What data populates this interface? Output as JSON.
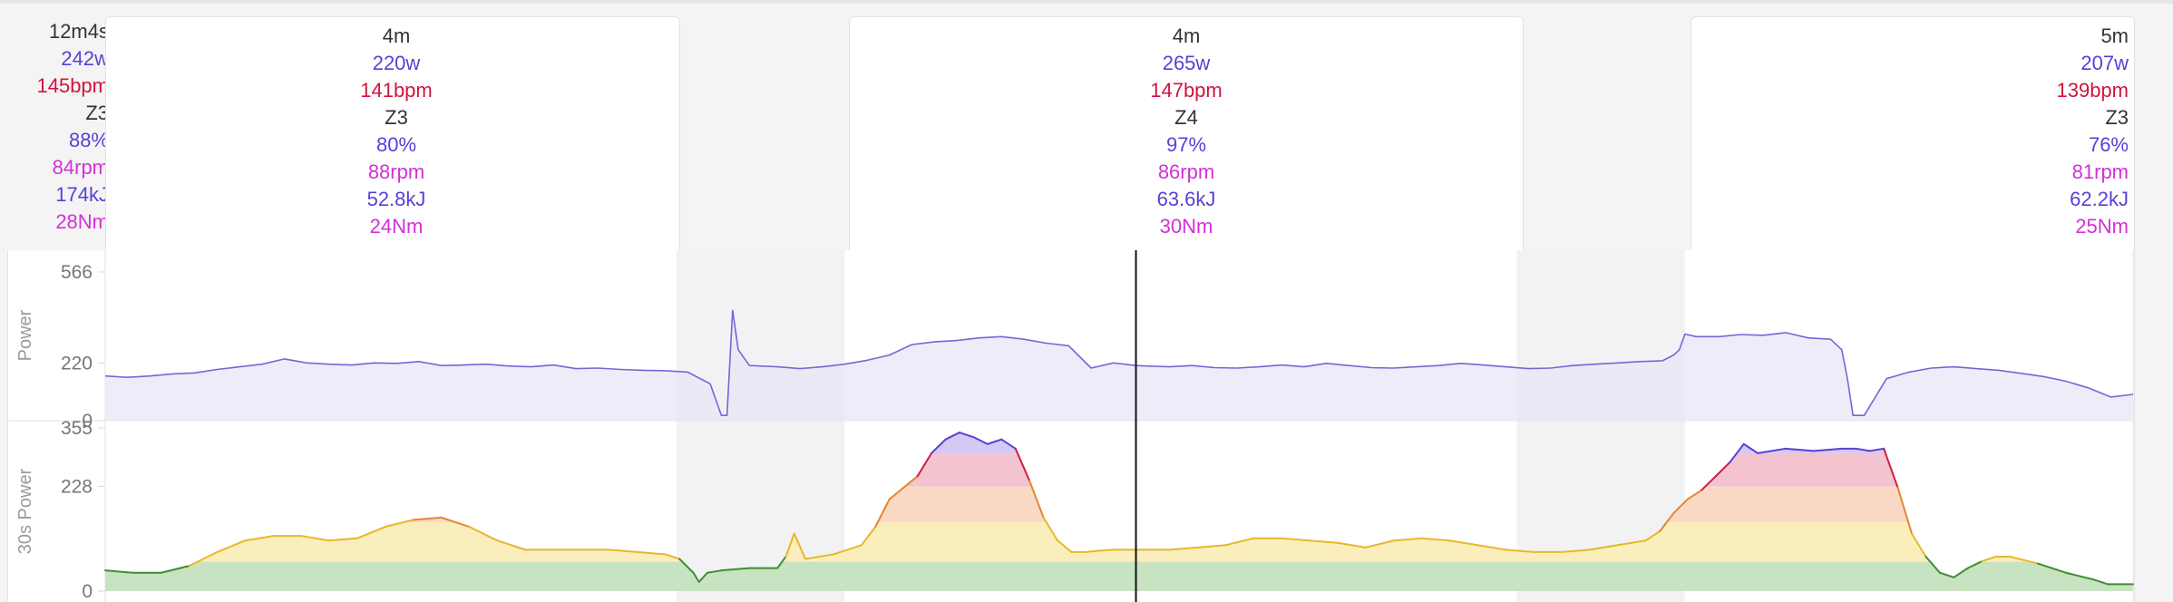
{
  "summary": {
    "duration": "12m4s",
    "power": "242w",
    "hr": "145bpm",
    "zone": "Z3",
    "pct": "88%",
    "cadence": "84rpm",
    "energy": "174kJ",
    "torque": "28Nm"
  },
  "intervals": [
    {
      "duration": "4m",
      "power": "220w",
      "hr": "141bpm",
      "zone": "Z3",
      "pct": "80%",
      "cadence": "88rpm",
      "energy": "52.8kJ",
      "torque": "24Nm"
    },
    {
      "duration": "4m",
      "power": "265w",
      "hr": "147bpm",
      "zone": "Z4",
      "pct": "97%",
      "cadence": "86rpm",
      "energy": "63.6kJ",
      "torque": "30Nm"
    },
    {
      "duration": "5m",
      "power": "207w",
      "hr": "139bpm",
      "zone": "Z3",
      "pct": "76%",
      "cadence": "81rpm",
      "energy": "62.2kJ",
      "torque": "25Nm"
    }
  ],
  "chart_data": [
    {
      "type": "area",
      "ylabel": "Power",
      "yticks": [
        0,
        220,
        566
      ],
      "ylim": [
        0,
        566
      ],
      "x_range": [
        0,
        724
      ],
      "grid": false,
      "colors": {
        "line": "#7a64d4",
        "fill": "#e9e6f7"
      },
      "x": [
        0,
        8,
        16,
        24,
        32,
        40,
        48,
        56,
        64,
        72,
        80,
        88,
        96,
        104,
        112,
        120,
        128,
        136,
        144,
        152,
        160,
        168,
        176,
        184,
        192,
        200,
        208,
        216,
        220,
        222,
        224,
        226,
        230,
        240,
        248,
        256,
        264,
        272,
        280,
        288,
        296,
        304,
        312,
        320,
        328,
        336,
        344,
        352,
        360,
        368,
        372,
        380,
        388,
        396,
        404,
        412,
        420,
        428,
        436,
        444,
        452,
        460,
        468,
        476,
        484,
        492,
        500,
        508,
        516,
        524,
        532,
        540,
        548,
        556,
        560,
        562,
        564,
        568,
        576,
        584,
        592,
        600,
        608,
        616,
        620,
        622,
        624,
        628,
        636,
        644,
        652,
        660,
        668,
        676,
        684,
        692,
        700,
        708,
        716,
        724
      ],
      "values": [
        170,
        165,
        170,
        178,
        182,
        195,
        205,
        215,
        235,
        220,
        215,
        212,
        220,
        218,
        225,
        210,
        212,
        215,
        208,
        205,
        212,
        198,
        200,
        195,
        192,
        190,
        185,
        140,
        20,
        20,
        420,
        270,
        210,
        205,
        198,
        205,
        215,
        230,
        250,
        290,
        300,
        305,
        315,
        320,
        310,
        295,
        285,
        200,
        220,
        210,
        208,
        205,
        210,
        202,
        200,
        205,
        212,
        205,
        218,
        210,
        202,
        200,
        205,
        210,
        218,
        212,
        205,
        198,
        200,
        210,
        215,
        220,
        225,
        228,
        250,
        270,
        330,
        320,
        320,
        328,
        325,
        335,
        315,
        310,
        270,
        160,
        20,
        20,
        160,
        185,
        200,
        205,
        198,
        192,
        180,
        168,
        150,
        125,
        90,
        100
      ],
      "markers": {
        "cursor_x": 368
      }
    },
    {
      "type": "area",
      "ylabel": "30s Power",
      "yticks": [
        0,
        228,
        355
      ],
      "ylim": [
        0,
        355
      ],
      "x_range": [
        0,
        724
      ],
      "grid": false,
      "zone_bands": [
        {
          "from": 0,
          "to": 64,
          "color": "#c8e3c2"
        },
        {
          "from": 64,
          "to": 150,
          "color": "#fbeebd"
        },
        {
          "from": 150,
          "to": 228,
          "color": "#f9d9c4"
        },
        {
          "from": 228,
          "to": 300,
          "color": "#f3c3cf"
        },
        {
          "from": 300,
          "to": 355,
          "color": "#d3c9f3"
        }
      ],
      "zone_line_colors": [
        "#3d8f31",
        "#e6b82a",
        "#e8832e",
        "#d21b45",
        "#5b3fd6"
      ],
      "x": [
        0,
        10,
        20,
        30,
        40,
        50,
        60,
        70,
        80,
        90,
        100,
        110,
        120,
        130,
        140,
        150,
        160,
        170,
        180,
        190,
        200,
        205,
        210,
        212,
        215,
        220,
        230,
        235,
        240,
        243,
        246,
        250,
        260,
        270,
        275,
        280,
        290,
        295,
        300,
        305,
        310,
        315,
        320,
        325,
        330,
        335,
        340,
        345,
        350,
        355,
        360,
        370,
        380,
        390,
        400,
        410,
        420,
        430,
        440,
        450,
        460,
        470,
        480,
        490,
        500,
        510,
        520,
        530,
        540,
        550,
        555,
        560,
        565,
        570,
        575,
        580,
        585,
        590,
        600,
        610,
        620,
        625,
        630,
        635,
        640,
        645,
        650,
        655,
        660,
        665,
        670,
        675,
        680,
        690,
        700,
        710,
        715,
        720,
        724
      ],
      "values": [
        45,
        40,
        40,
        55,
        85,
        110,
        120,
        120,
        110,
        115,
        140,
        155,
        160,
        140,
        110,
        90,
        90,
        90,
        90,
        85,
        80,
        70,
        40,
        20,
        40,
        45,
        50,
        50,
        50,
        75,
        125,
        70,
        80,
        100,
        140,
        200,
        250,
        300,
        330,
        345,
        335,
        320,
        330,
        310,
        240,
        160,
        110,
        85,
        85,
        88,
        90,
        90,
        90,
        95,
        100,
        115,
        115,
        110,
        105,
        95,
        110,
        115,
        110,
        100,
        90,
        85,
        85,
        90,
        100,
        110,
        130,
        170,
        200,
        220,
        250,
        280,
        320,
        300,
        310,
        305,
        310,
        310,
        305,
        310,
        225,
        125,
        75,
        40,
        30,
        50,
        65,
        75,
        75,
        60,
        40,
        25,
        15,
        15,
        15
      ],
      "markers": {
        "cursor_x": 368
      }
    }
  ],
  "interval_ranges": [
    [
      0,
      204
    ],
    [
      264,
      504
    ],
    [
      564,
      724
    ]
  ]
}
